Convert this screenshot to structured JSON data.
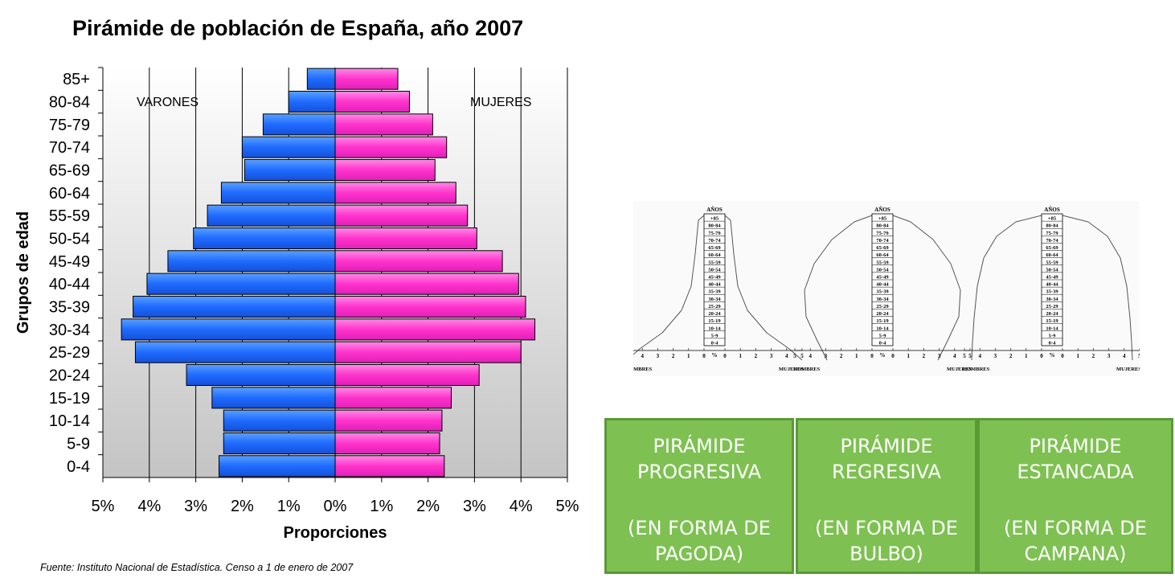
{
  "chart_data": [
    {
      "type": "bar",
      "orientation": "horizontal",
      "title": "Pirámide de población de España, año 2007",
      "xlabel": "Proporciones",
      "ylabel": "Grupos de edad",
      "xlim": [
        -5,
        5
      ],
      "x_tick_labels": [
        "5%",
        "4%",
        "3%",
        "2%",
        "1%",
        "0%",
        "1%",
        "2%",
        "3%",
        "4%",
        "5%"
      ],
      "categories": [
        "85+",
        "80-84",
        "75-79",
        "70-74",
        "65-69",
        "60-64",
        "55-59",
        "50-54",
        "45-49",
        "40-44",
        "35-39",
        "30-34",
        "25-29",
        "20-24",
        "15-19",
        "10-14",
        "5-9",
        "0-4"
      ],
      "series": [
        {
          "name": "VARONES",
          "color": "#1f6bff",
          "values": [
            0.6,
            1.0,
            1.55,
            2.0,
            1.95,
            2.45,
            2.75,
            3.05,
            3.6,
            4.05,
            4.35,
            4.6,
            4.3,
            3.2,
            2.65,
            2.4,
            2.4,
            2.5
          ]
        },
        {
          "name": "MUJERES",
          "color": "#ff33cc",
          "values": [
            1.35,
            1.6,
            2.1,
            2.4,
            2.15,
            2.6,
            2.85,
            3.05,
            3.6,
            3.95,
            4.1,
            4.3,
            4.0,
            3.1,
            2.5,
            2.3,
            2.25,
            2.35
          ]
        }
      ],
      "source": "Fuente: Instituto Nacional de Estadística. Censo a 1 de enero de 2007",
      "grid": true
    }
  ],
  "schematic": {
    "header": "AÑOS",
    "age_groups": [
      "+85",
      "80-84",
      "75-79",
      "70-74",
      "65-69",
      "60-64",
      "55-59",
      "50-54",
      "45-49",
      "40-44",
      "35-39",
      "30-34",
      "25-29",
      "20-24",
      "15-19",
      "10-14",
      "5-9",
      "0-4"
    ],
    "scale_left": [
      "5",
      "4",
      "3",
      "2",
      "1",
      "0"
    ],
    "scale_right": [
      "0",
      "1",
      "2",
      "3",
      "4",
      "5"
    ],
    "percent_sign": "%",
    "left_label": "HOMBRES",
    "right_label": "MUJERES"
  },
  "types": [
    {
      "name_lines": [
        "PIRÁMIDE",
        "PROGRESIVA"
      ],
      "form_lines": [
        "(EN FORMA DE",
        "PAGODA)"
      ]
    },
    {
      "name_lines": [
        "PIRÁMIDE",
        "REGRESIVA"
      ],
      "form_lines": [
        "(EN FORMA DE",
        "BULBO)"
      ]
    },
    {
      "name_lines": [
        "PIRÁMIDE",
        "ESTANCADA"
      ],
      "form_lines": [
        "(EN FORMA DE",
        "CAMPANA)"
      ]
    }
  ]
}
